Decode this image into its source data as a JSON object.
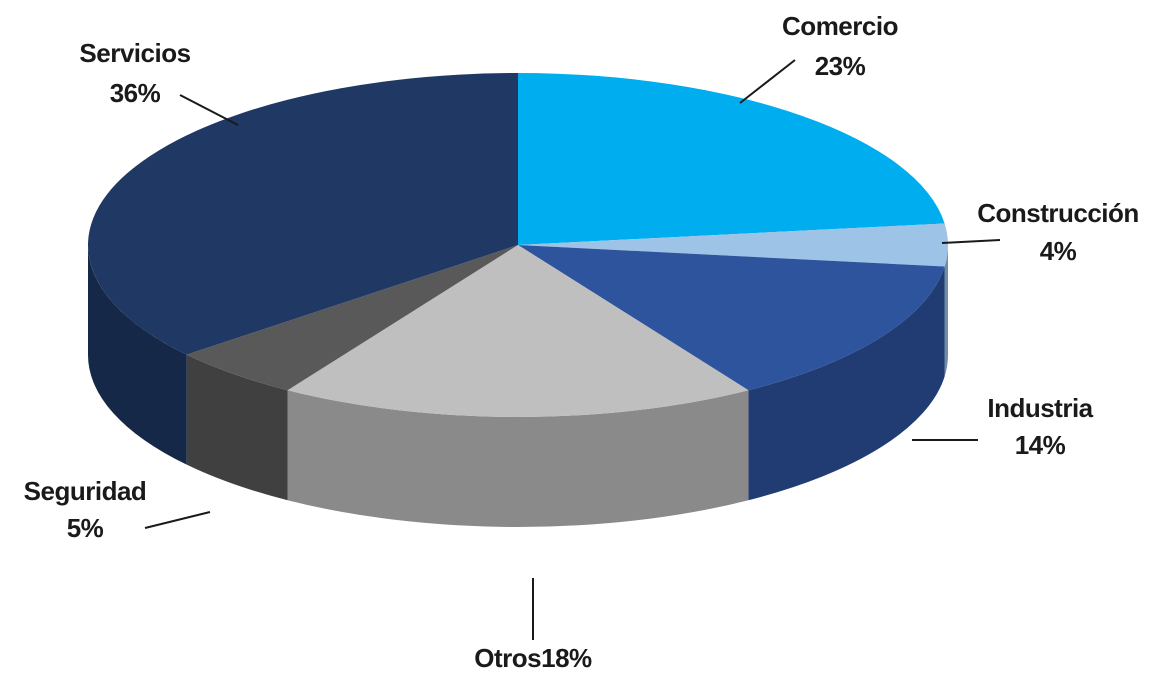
{
  "chart_data": {
    "type": "pie",
    "categories": [
      "Comercio",
      "Construcción",
      "Industria",
      "Otros",
      "Seguridad",
      "Servicios"
    ],
    "values": [
      23,
      4,
      14,
      18,
      5,
      36
    ],
    "value_labels": [
      "23%",
      "4%",
      "14%",
      "18%",
      "5%",
      "36%"
    ],
    "colors": [
      "#00aeef",
      "#9dc3e6",
      "#2e549e",
      "#bfbfbf",
      "#595959",
      "#1f3864"
    ]
  }
}
